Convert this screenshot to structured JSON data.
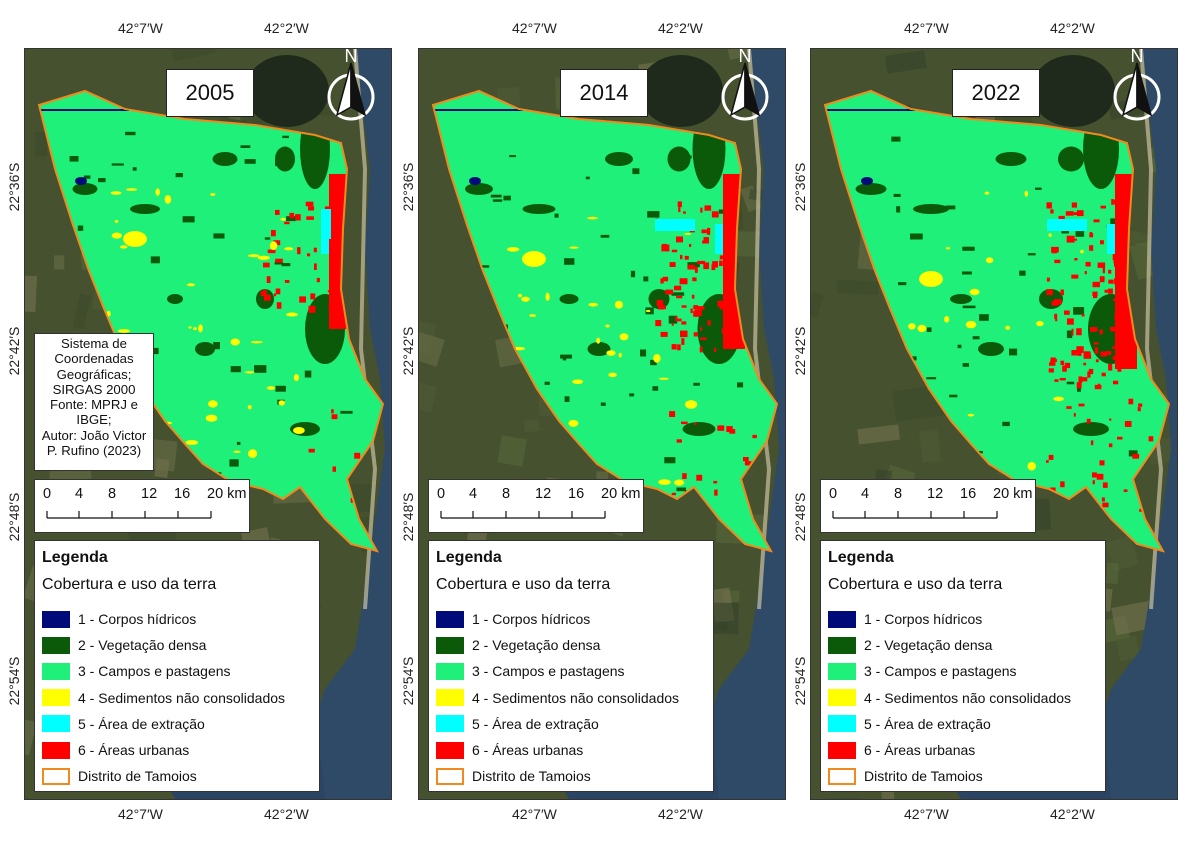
{
  "axis": {
    "top": [
      "42°7′W",
      "42°2′W"
    ],
    "bottom": [
      "42°7′W",
      "42°2′W"
    ],
    "left": [
      "22°36′S",
      "22°42′S",
      "22°48′S",
      "22°54′S"
    ]
  },
  "north_label": "N",
  "panels": [
    {
      "year": "2005",
      "show_info": true
    },
    {
      "year": "2014",
      "show_info": false
    },
    {
      "year": "2022",
      "show_info": false
    }
  ],
  "info": {
    "lines": [
      "Sistema de",
      "Coordenadas",
      "Geográficas;",
      "SIRGAS 2000",
      "Fonte: MPRJ e",
      "IBGE;",
      "Autor: João Victor",
      "P. Rufino (2023)"
    ]
  },
  "scale": {
    "labels": [
      "0",
      "4",
      "8",
      "12",
      "16",
      "20 km"
    ]
  },
  "legend": {
    "title": "Legenda",
    "subtitle": "Cobertura e uso da terra",
    "items": [
      {
        "label": "1 - Corpos hídricos",
        "color": "#000b7a"
      },
      {
        "label": "2 - Vegetação densa",
        "color": "#0a5a0a"
      },
      {
        "label": "3 - Campos e pastagens",
        "color": "#1ef07a"
      },
      {
        "label": "4 - Sedimentos não consolidados",
        "color": "#ffff00"
      },
      {
        "label": "5 - Área de extração",
        "color": "#00ffff"
      },
      {
        "label": "6 - Áreas urbanas",
        "color": "#ff0000"
      },
      {
        "label": "Distrito de Tamoios",
        "color": "#f08a1e",
        "outline": true
      }
    ]
  },
  "colors": {
    "boundary": "#f08a1e",
    "sea": "#2f4a66",
    "land": "#45512f"
  }
}
